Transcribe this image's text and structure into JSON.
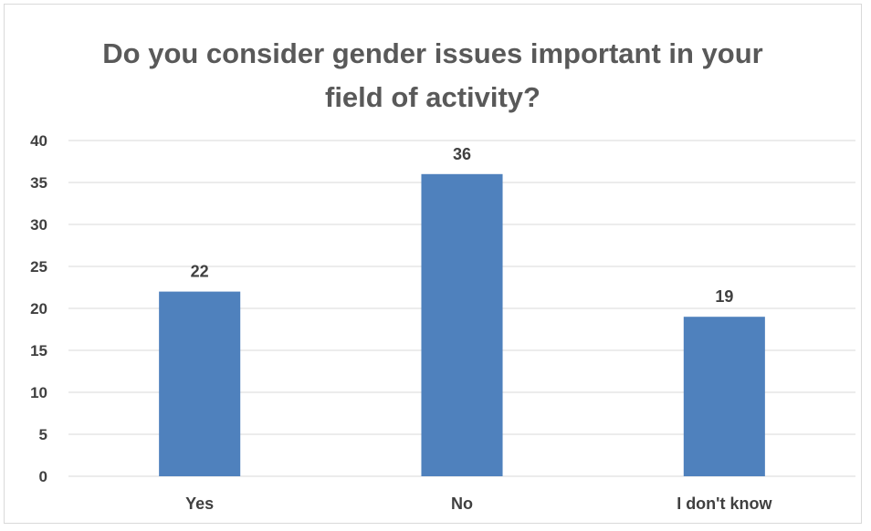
{
  "chart_data": {
    "type": "bar",
    "title_lines": [
      "Do you consider gender issues important in your",
      "field of activity?"
    ],
    "categories": [
      "Yes",
      "No",
      "I don't know"
    ],
    "values": [
      22,
      36,
      19
    ],
    "data_labels": [
      "22",
      "36",
      "19"
    ],
    "xlabel": "",
    "ylabel": "",
    "ylim": [
      0,
      40
    ],
    "y_ticks": [
      0,
      5,
      10,
      15,
      20,
      25,
      30,
      35,
      40
    ],
    "grid": true,
    "legend": "none",
    "bar_color": "#4f81bd",
    "grid_color": "#d9d9d9",
    "text_color": "#404040",
    "title_color": "#595959"
  }
}
